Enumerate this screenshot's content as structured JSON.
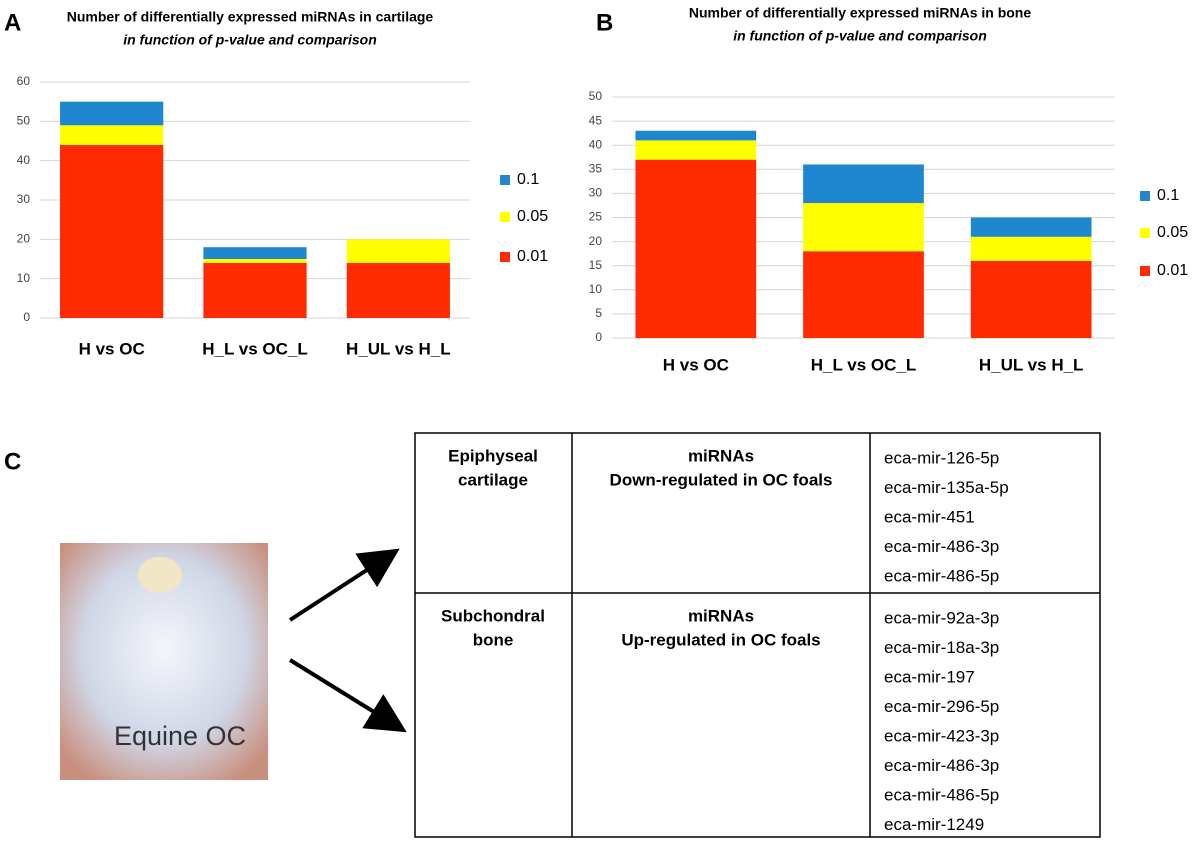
{
  "panel_labels": [
    "A",
    "B",
    "C"
  ],
  "chart_data": [
    {
      "type": "bar",
      "stacked": true,
      "title": "Number of  differentially expressed miRNAs in cartilage",
      "subtitle": "in function of p-value and comparison",
      "categories": [
        "H vs OC",
        "H_L vs OC_L",
        "H_UL vs H_L"
      ],
      "series": [
        {
          "name": "0.01",
          "color": "#ff2a00",
          "values": [
            44,
            14,
            14
          ]
        },
        {
          "name": "0.05",
          "color": "#ffff00",
          "values": [
            5,
            1,
            6
          ]
        },
        {
          "name": "0.1",
          "color": "#1f87d0",
          "values": [
            6,
            3,
            0
          ]
        }
      ],
      "ylim": [
        0,
        60
      ],
      "yticks": [
        0,
        10,
        20,
        30,
        40,
        50,
        60
      ],
      "grid": true,
      "legend": "right"
    },
    {
      "type": "bar",
      "stacked": true,
      "title": "Number of  differentially expressed miRNAs in bone",
      "subtitle": "in function of p-value and comparison",
      "categories": [
        "H vs OC",
        "H_L vs OC_L",
        "H_UL vs H_L"
      ],
      "series": [
        {
          "name": "0.01",
          "color": "#ff2a00",
          "values": [
            37,
            18,
            16
          ]
        },
        {
          "name": "0.05",
          "color": "#ffff00",
          "values": [
            4,
            10,
            5
          ]
        },
        {
          "name": "0.1",
          "color": "#1f87d0",
          "values": [
            2,
            8,
            4
          ]
        }
      ],
      "ylim": [
        0,
        50
      ],
      "yticks": [
        0,
        5,
        10,
        15,
        20,
        25,
        30,
        35,
        40,
        45,
        50
      ],
      "grid": true,
      "legend": "right"
    }
  ],
  "photo": {
    "caption": "Equine OC"
  },
  "table": {
    "rows": [
      {
        "tissue": [
          "Epiphyseal",
          "cartilage"
        ],
        "heading": [
          "miRNAs",
          "Down-regulated in OC foals"
        ],
        "mirnas": [
          "eca-mir-126-5p",
          "eca-mir-135a-5p",
          "eca-mir-451",
          "eca-mir-486-3p",
          "eca-mir-486-5p"
        ]
      },
      {
        "tissue": [
          "Subchondral",
          "bone"
        ],
        "heading": [
          "miRNAs",
          "Up-regulated in OC foals"
        ],
        "mirnas": [
          "eca-mir-92a-3p",
          "eca-mir-18a-3p",
          "eca-mir-197",
          "eca-mir-296-5p",
          "eca-mir-423-3p",
          "eca-mir-486-3p",
          "eca-mir-486-5p",
          "eca-mir-1249"
        ]
      }
    ]
  }
}
